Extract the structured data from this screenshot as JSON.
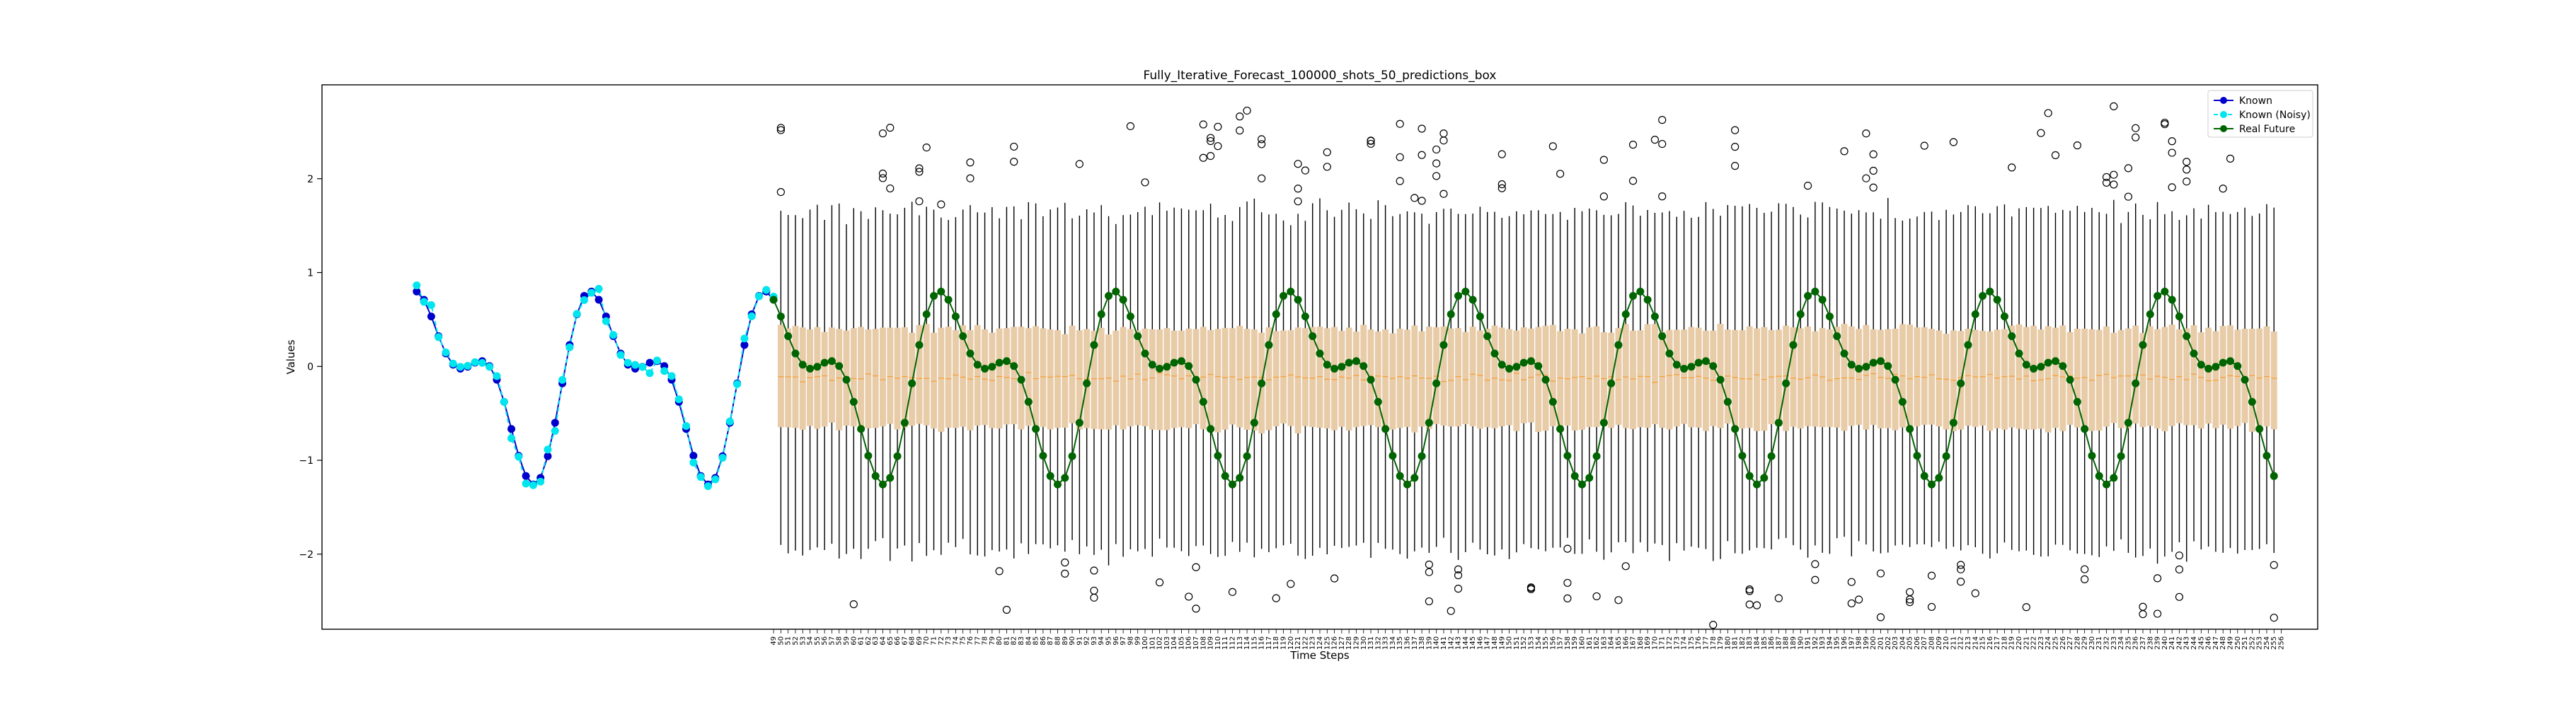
{
  "chart_data": {
    "type": "box",
    "title": "Fully_Iterative_Forecast_100000_shots_50_predictions_box",
    "xlabel": "Time Steps",
    "ylabel": "Values",
    "ylim": [
      -2.8,
      3.0
    ],
    "yticks": [
      -2,
      -1,
      0,
      1,
      2
    ],
    "grid": false,
    "legend_position": "upper-right",
    "signal": {
      "kind": "sine-mixture",
      "components": [
        {
          "amplitude": 0.75,
          "period": 24,
          "phase": 0.9
        },
        {
          "amplitude": 0.45,
          "period": 12,
          "phase": 2.25
        }
      ],
      "offset": -0.14
    },
    "known_range": [
      0,
      50
    ],
    "future_range": [
      50,
      256
    ],
    "series": [
      {
        "name": "Known",
        "color": "#0000cd",
        "style": "solid-marker"
      },
      {
        "name": "Known (Noisy)",
        "color": "#00e5ee",
        "style": "dashed-marker"
      },
      {
        "name": "Real Future",
        "color": "#006400",
        "style": "solid-marker"
      }
    ],
    "predictions_box": {
      "color": "#e8cba7",
      "median_color": "#ff8c00",
      "whisker_color": "#000000",
      "q1_mean": -0.65,
      "q3_mean": 0.4,
      "median_mean": -0.12,
      "whisker_low_mean": -1.95,
      "whisker_high_mean": 1.65,
      "outlier_marker": "circle-open"
    },
    "xtick_start": 49,
    "xtick_end": 256,
    "legend": [
      "Known",
      "Known (Noisy)",
      "Real Future"
    ]
  }
}
